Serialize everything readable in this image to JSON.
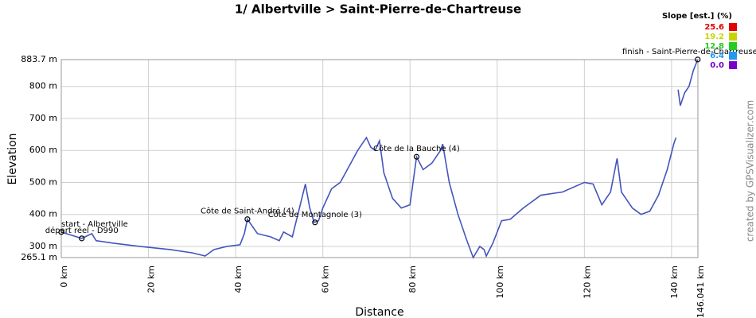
{
  "chart_data": {
    "type": "line",
    "title": "1/ Albertville > Saint-Pierre-de-Chartreuse",
    "x_label": "Distance",
    "y_label": "Elevation",
    "credit": "created by GPSVisualizer.com",
    "xlim": [
      0,
      146.041
    ],
    "ylim": [
      265.1,
      883.7
    ],
    "xticks": [
      {
        "value": 0,
        "label": "0 km"
      },
      {
        "value": 20,
        "label": "20 km"
      },
      {
        "value": 40,
        "label": "40 km"
      },
      {
        "value": 60,
        "label": "60 km"
      },
      {
        "value": 80,
        "label": "80 km"
      },
      {
        "value": 100,
        "label": "100 km"
      },
      {
        "value": 120,
        "label": "120 km"
      },
      {
        "value": 140,
        "label": "140 km"
      },
      {
        "value": 146.041,
        "label": "146.041 km"
      }
    ],
    "yticks": [
      {
        "value": 265.1,
        "label": "265.1 m"
      },
      {
        "value": 300,
        "label": "300 m"
      },
      {
        "value": 400,
        "label": "400 m"
      },
      {
        "value": 500,
        "label": "500 m"
      },
      {
        "value": 600,
        "label": "600 m"
      },
      {
        "value": 700,
        "label": "700 m"
      },
      {
        "value": 800,
        "label": "800 m"
      },
      {
        "value": 883.7,
        "label": "883.7 m"
      }
    ],
    "grid": true,
    "x": [
      0,
      4.7,
      7,
      8,
      12,
      18,
      25,
      30,
      33,
      35,
      38,
      41,
      42,
      42.7,
      45,
      48,
      50,
      51,
      53,
      55,
      56,
      57,
      58,
      59,
      60,
      62,
      64,
      66,
      68,
      70,
      71,
      72,
      73,
      74,
      76,
      78,
      80,
      81.5,
      83,
      85,
      87,
      87.5,
      89,
      91,
      93,
      94.5,
      96,
      97,
      97.5,
      99,
      101,
      103,
      106,
      110,
      115,
      120,
      122,
      124,
      126,
      127.5,
      128.5,
      131,
      133,
      135,
      137,
      139,
      140.5,
      141,
      141.3,
      141.5,
      142,
      143,
      144,
      145,
      146
    ],
    "series": [
      {
        "name": "Elevation",
        "color": "#4455bb",
        "values": [
          345,
          325,
          340,
          318,
          310,
          300,
          290,
          280,
          270,
          290,
          300,
          305,
          340,
          385,
          340,
          330,
          318,
          345,
          330,
          440,
          495,
          420,
          375,
          380,
          420,
          480,
          500,
          550,
          600,
          640,
          610,
          600,
          630,
          530,
          450,
          420,
          430,
          580,
          540,
          560,
          600,
          620,
          500,
          400,
          320,
          265,
          300,
          290,
          270,
          310,
          380,
          385,
          420,
          460,
          470,
          500,
          495,
          430,
          470,
          575,
          470,
          420,
          400,
          410,
          460,
          540,
          620,
          640,
          null,
          790,
          740,
          780,
          800,
          850,
          884
        ]
      }
    ],
    "waypoints": [
      {
        "name": "start - Albertville",
        "x": 0,
        "y": 345
      },
      {
        "name": "départ réel - D990",
        "x": 4.7,
        "y": 325
      },
      {
        "name": "Côte de Saint-André (4)",
        "x": 42.7,
        "y": 385
      },
      {
        "name": "Côte de Montagnole (3)",
        "x": 58.2,
        "y": 375
      },
      {
        "name": "Côte de la Bauche (4)",
        "x": 81.5,
        "y": 580
      },
      {
        "name": "finish - Saint-Pierre-de-Chartreuse",
        "x": 146,
        "y": 884
      }
    ],
    "legend_title": "Slope [est.] (%)",
    "slope_legend": [
      {
        "label": "25.6",
        "color": "#e00000"
      },
      {
        "label": "19.2",
        "color": "#c8d400"
      },
      {
        "label": "12.8",
        "color": "#22cc22"
      },
      {
        "label": "6.4",
        "color": "#2299ee"
      },
      {
        "label": "0.0",
        "color": "#7700cc"
      }
    ]
  }
}
